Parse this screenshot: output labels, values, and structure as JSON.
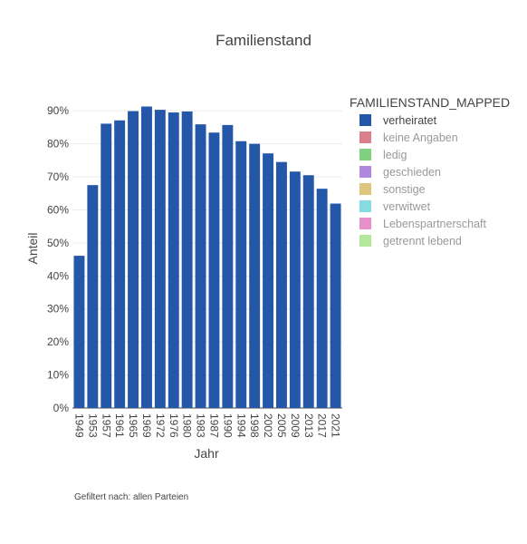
{
  "chart_data": {
    "type": "bar",
    "title": "Familienstand",
    "xlabel": "Jahr",
    "ylabel": "Anteil",
    "ylim": [
      0,
      0.95
    ],
    "yticks": [
      0,
      0.1,
      0.2,
      0.3,
      0.4,
      0.5,
      0.6,
      0.7,
      0.8,
      0.9
    ],
    "ytick_labels": [
      "0%",
      "10%",
      "20%",
      "30%",
      "40%",
      "50%",
      "60%",
      "70%",
      "80%",
      "90%"
    ],
    "grid": true,
    "categories": [
      "1949",
      "1953",
      "1957",
      "1961",
      "1965",
      "1969",
      "1972",
      "1976",
      "1980",
      "1983",
      "1987",
      "1990",
      "1994",
      "1998",
      "2002",
      "2005",
      "2009",
      "2013",
      "2017",
      "2021"
    ],
    "series": [
      {
        "name": "verheiratet",
        "color": "#2457a8",
        "values": [
          0.461,
          0.675,
          0.861,
          0.871,
          0.899,
          0.913,
          0.903,
          0.895,
          0.898,
          0.859,
          0.834,
          0.857,
          0.808,
          0.8,
          0.771,
          0.745,
          0.716,
          0.705,
          0.664,
          0.619
        ]
      }
    ],
    "legend": {
      "title": "FAMILIENSTAND_MAPPED",
      "placement": "right",
      "items": [
        {
          "label": "verheiratet",
          "color": "#2457a8",
          "active": true
        },
        {
          "label": "keine Angaben",
          "color": "#d9808c",
          "active": false
        },
        {
          "label": "ledig",
          "color": "#7fd07f",
          "active": false
        },
        {
          "label": "geschieden",
          "color": "#b088e0",
          "active": false
        },
        {
          "label": "sonstige",
          "color": "#dfc67f",
          "active": false
        },
        {
          "label": "verwitwet",
          "color": "#86dbe3",
          "active": false
        },
        {
          "label": "Lebenspartnerschaft",
          "color": "#e78fca",
          "active": false
        },
        {
          "label": "getrennt lebend",
          "color": "#b3e89a",
          "active": false
        }
      ]
    }
  },
  "footnote": "Gefiltert nach: allen Parteien"
}
